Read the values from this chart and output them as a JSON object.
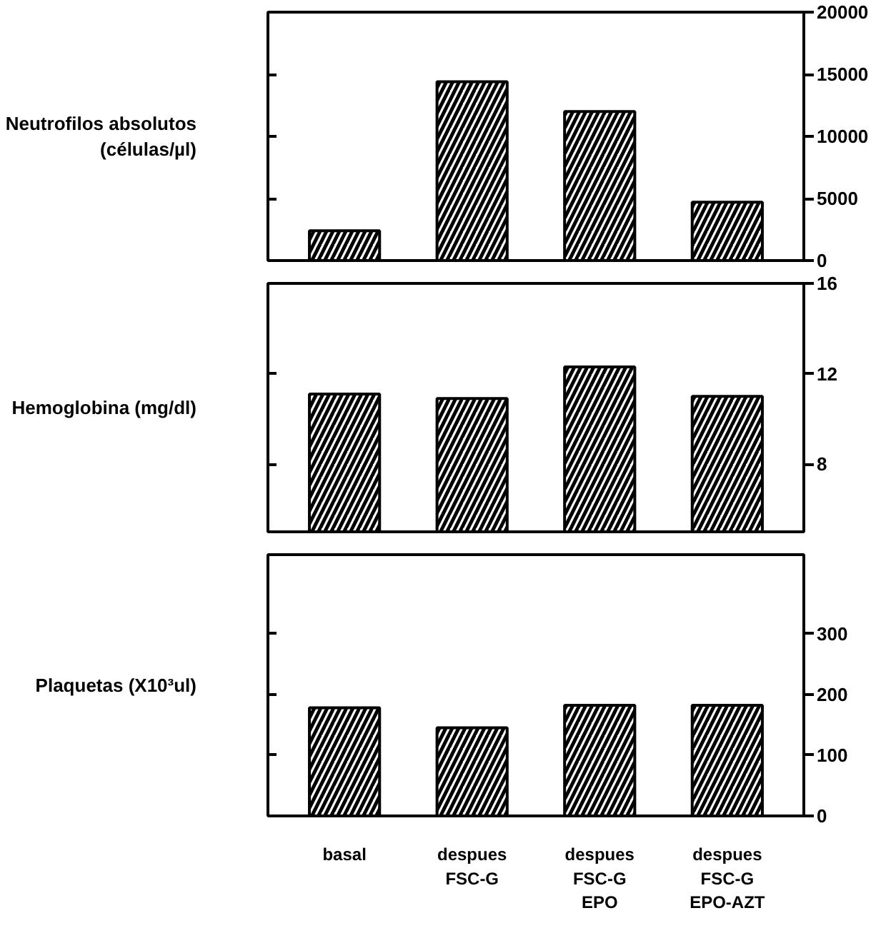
{
  "chart_data": [
    {
      "type": "bar",
      "ylabel": "Neutrofilos absolutos\n(células/µl)",
      "categories": [
        null,
        null,
        null,
        null
      ],
      "values": [
        2400,
        14400,
        12000,
        4700
      ],
      "color": "#000000",
      "ylim": [
        0,
        20000
      ],
      "yticks": [
        0,
        5000,
        10000,
        15000,
        20000
      ],
      "tick_labels": "y"
    },
    {
      "type": "bar",
      "ylabel": "Hemoglobina (mg/dl)",
      "categories": [
        null,
        null,
        null,
        null
      ],
      "values": [
        11.1,
        10.9,
        12.3,
        11.0
      ],
      "color": "#000000",
      "ylim": [
        5,
        16
      ],
      "yticks": [
        8,
        12,
        16
      ],
      "tick_labels": "y"
    },
    {
      "type": "bar",
      "ylabel": "Plaquetas (X10³ul)",
      "categories": [
        "basal",
        "despues\nFSC-G",
        "despues\nFSC-G\nEPO",
        "despues\nFSC-G\nEPO-AZT"
      ],
      "values": [
        178,
        145,
        182,
        182
      ],
      "color": "#000000",
      "ylim": [
        0,
        430
      ],
      "yticks": [
        0,
        100,
        200,
        300
      ]
    }
  ]
}
